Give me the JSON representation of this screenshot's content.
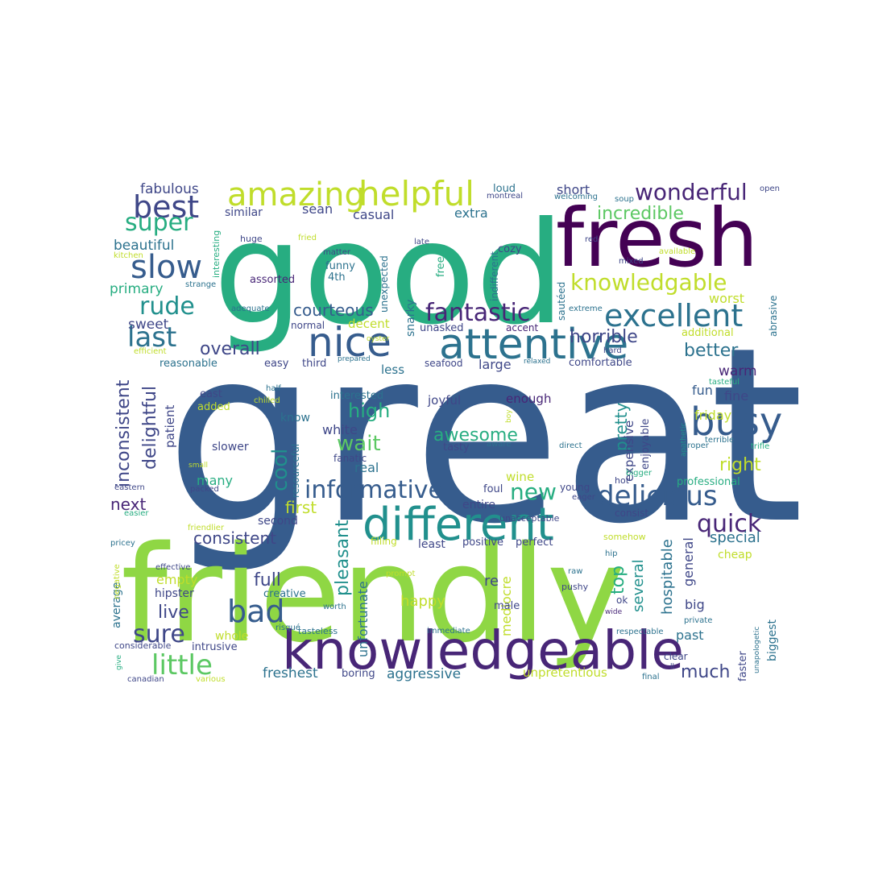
{
  "palette": {
    "dark_purple": "#440154",
    "purple": "#482677",
    "indigo": "#3f4788",
    "blue": "#365c8d",
    "steel": "#2c728e",
    "teal": "#21908d",
    "green_teal": "#27ad81",
    "green": "#5cc863",
    "lime": "#8fd744",
    "yellow_green": "#c0dd2b",
    "yellow": "#fde725"
  },
  "words": [
    {
      "text": "great",
      "color": "blue"
    },
    {
      "text": "good",
      "color": "green_teal"
    },
    {
      "text": "friendly",
      "color": "lime"
    },
    {
      "text": "fresh",
      "color": "dark_purple"
    },
    {
      "text": "knowledgeable",
      "color": "purple"
    },
    {
      "text": "different",
      "color": "teal"
    },
    {
      "text": "attentive",
      "color": "steel"
    },
    {
      "text": "nice",
      "color": "blue"
    },
    {
      "text": "helpful",
      "color": "yellow_green"
    },
    {
      "text": "amazing",
      "color": "yellow_green"
    },
    {
      "text": "busy",
      "color": "blue"
    },
    {
      "text": "excellent",
      "color": "steel"
    },
    {
      "text": "slow",
      "color": "blue"
    },
    {
      "text": "best",
      "color": "indigo"
    },
    {
      "text": "informative",
      "color": "blue"
    },
    {
      "text": "delicious",
      "color": "blue"
    },
    {
      "text": "knowledgable",
      "color": "yellow_green"
    },
    {
      "text": "wonderful",
      "color": "purple"
    },
    {
      "text": "super",
      "color": "green_teal"
    },
    {
      "text": "fantastic",
      "color": "purple"
    },
    {
      "text": "last",
      "color": "steel"
    },
    {
      "text": "rude",
      "color": "teal"
    },
    {
      "text": "bad",
      "color": "blue"
    },
    {
      "text": "little",
      "color": "green"
    },
    {
      "text": "sure",
      "color": "indigo"
    },
    {
      "text": "incredible",
      "color": "green"
    },
    {
      "text": "quick",
      "color": "purple"
    },
    {
      "text": "new",
      "color": "green_teal"
    },
    {
      "text": "courteous",
      "color": "blue"
    },
    {
      "text": "horrible",
      "color": "indigo"
    },
    {
      "text": "overall",
      "color": "indigo"
    },
    {
      "text": "better",
      "color": "steel"
    },
    {
      "text": "high",
      "color": "green_teal"
    },
    {
      "text": "wait",
      "color": "green"
    },
    {
      "text": "cool",
      "color": "teal"
    },
    {
      "text": "awesome",
      "color": "green_teal"
    },
    {
      "text": "consistent",
      "color": "indigo"
    },
    {
      "text": "inconsistent",
      "color": "indigo"
    },
    {
      "text": "delightful",
      "color": "indigo"
    },
    {
      "text": "pleasant",
      "color": "teal"
    },
    {
      "text": "first",
      "color": "yellow_green"
    },
    {
      "text": "next",
      "color": "purple"
    },
    {
      "text": "right",
      "color": "yellow_green"
    },
    {
      "text": "pretty",
      "color": "teal"
    },
    {
      "text": "full",
      "color": "indigo"
    },
    {
      "text": "live",
      "color": "indigo"
    },
    {
      "text": "much",
      "color": "indigo"
    },
    {
      "text": "top",
      "color": "green_teal"
    },
    {
      "text": "fabulous",
      "color": "indigo"
    },
    {
      "text": "beautiful",
      "color": "steel"
    },
    {
      "text": "primary",
      "color": "green_teal"
    },
    {
      "text": "sweet",
      "color": "indigo"
    },
    {
      "text": "warm",
      "color": "purple"
    },
    {
      "text": "worst",
      "color": "yellow_green"
    },
    {
      "text": "fine",
      "color": "indigo"
    },
    {
      "text": "fun",
      "color": "blue"
    },
    {
      "text": "friday",
      "color": "yellow_green"
    },
    {
      "text": "special",
      "color": "steel"
    },
    {
      "text": "hospitable",
      "color": "steel"
    },
    {
      "text": "general",
      "color": "indigo"
    },
    {
      "text": "several",
      "color": "teal"
    },
    {
      "text": "happy",
      "color": "yellow_green"
    },
    {
      "text": "re",
      "color": "indigo"
    },
    {
      "text": "mediocre",
      "color": "yellow_green"
    },
    {
      "text": "unfortunate",
      "color": "steel"
    },
    {
      "text": "aggressive",
      "color": "steel"
    },
    {
      "text": "freshest",
      "color": "steel"
    },
    {
      "text": "unpretentious",
      "color": "yellow_green"
    },
    {
      "text": "past",
      "color": "steel"
    },
    {
      "text": "big",
      "color": "indigo"
    },
    {
      "text": "biggest",
      "color": "steel"
    },
    {
      "text": "empty",
      "color": "yellow_green"
    },
    {
      "text": "average",
      "color": "steel"
    },
    {
      "text": "hipster",
      "color": "indigo"
    },
    {
      "text": "whole",
      "color": "yellow_green"
    },
    {
      "text": "expensive",
      "color": "indigo"
    },
    {
      "text": "enjoyable",
      "color": "indigo"
    },
    {
      "text": "professional",
      "color": "green_teal"
    },
    {
      "text": "cheap",
      "color": "yellow_green"
    },
    {
      "text": "many",
      "color": "green_teal"
    },
    {
      "text": "real",
      "color": "steel"
    },
    {
      "text": "white",
      "color": "indigo"
    },
    {
      "text": "slower",
      "color": "indigo"
    },
    {
      "text": "enough",
      "color": "purple"
    },
    {
      "text": "second",
      "color": "indigo"
    },
    {
      "text": "least",
      "color": "indigo"
    },
    {
      "text": "positive",
      "color": "indigo"
    },
    {
      "text": "perfect",
      "color": "indigo"
    },
    {
      "text": "entire",
      "color": "indigo"
    },
    {
      "text": "wine",
      "color": "yellow_green"
    },
    {
      "text": "short",
      "color": "indigo"
    },
    {
      "text": "extra",
      "color": "steel"
    },
    {
      "text": "casual",
      "color": "indigo"
    },
    {
      "text": "sean",
      "color": "indigo"
    },
    {
      "text": "similar",
      "color": "indigo"
    },
    {
      "text": "loud",
      "color": "steel"
    },
    {
      "text": "decent",
      "color": "yellow_green"
    },
    {
      "text": "snarky",
      "color": "steel"
    },
    {
      "text": "less",
      "color": "steel"
    },
    {
      "text": "large",
      "color": "indigo"
    },
    {
      "text": "patient",
      "color": "indigo"
    },
    {
      "text": "added",
      "color": "yellow_green"
    },
    {
      "text": "east",
      "color": "indigo"
    },
    {
      "text": "reasonable",
      "color": "steel"
    },
    {
      "text": "easy",
      "color": "indigo"
    },
    {
      "text": "third",
      "color": "indigo"
    },
    {
      "text": "seafood",
      "color": "indigo"
    },
    {
      "text": "comfortable",
      "color": "indigo"
    },
    {
      "text": "interested",
      "color": "steel"
    },
    {
      "text": "joyful",
      "color": "indigo"
    },
    {
      "text": "tasty",
      "color": "indigo"
    },
    {
      "text": "know",
      "color": "steel"
    },
    {
      "text": "fanatic",
      "color": "indigo"
    },
    {
      "text": "resourceful",
      "color": "steel"
    },
    {
      "text": "normal",
      "color": "indigo"
    },
    {
      "text": "assorted",
      "color": "purple"
    },
    {
      "text": "4th",
      "color": "steel"
    },
    {
      "text": "funny",
      "color": "steel"
    },
    {
      "text": "unasked",
      "color": "indigo"
    },
    {
      "text": "accent",
      "color": "purple"
    },
    {
      "text": "additional",
      "color": "yellow_green"
    },
    {
      "text": "abrasive",
      "color": "steel"
    },
    {
      "text": "cozy",
      "color": "indigo"
    },
    {
      "text": "free",
      "color": "green_teal"
    },
    {
      "text": "indifferent",
      "color": "steel"
    },
    {
      "text": "sautéed",
      "color": "steel"
    },
    {
      "text": "unexpected",
      "color": "steel"
    },
    {
      "text": "late",
      "color": "indigo"
    },
    {
      "text": "matter",
      "color": "indigo"
    },
    {
      "text": "huge",
      "color": "indigo"
    },
    {
      "text": "interesting",
      "color": "green_teal"
    },
    {
      "text": "fried",
      "color": "yellow_green"
    },
    {
      "text": "strange",
      "color": "steel"
    },
    {
      "text": "kitchen",
      "color": "yellow_green"
    },
    {
      "text": "adequate",
      "color": "steel"
    },
    {
      "text": "efficient",
      "color": "yellow_green"
    },
    {
      "text": "montreal",
      "color": "indigo"
    },
    {
      "text": "welcoming",
      "color": "steel"
    },
    {
      "text": "soup",
      "color": "steel"
    },
    {
      "text": "open",
      "color": "indigo"
    },
    {
      "text": "available",
      "color": "yellow_green"
    },
    {
      "text": "mixed",
      "color": "indigo"
    },
    {
      "text": "red",
      "color": "indigo"
    },
    {
      "text": "extreme",
      "color": "steel"
    },
    {
      "text": "prepared",
      "color": "steel"
    },
    {
      "text": "relaxed",
      "color": "steel"
    },
    {
      "text": "hard",
      "color": "indigo"
    },
    {
      "text": "tasteful",
      "color": "green_teal"
    },
    {
      "text": "terrible",
      "color": "steel"
    },
    {
      "text": "apathetic",
      "color": "teal"
    },
    {
      "text": "trifle",
      "color": "green_teal"
    },
    {
      "text": "proper",
      "color": "steel"
    },
    {
      "text": "direct",
      "color": "steel"
    },
    {
      "text": "aware",
      "color": "steel"
    },
    {
      "text": "boy",
      "color": "yellow_green"
    },
    {
      "text": "bigger",
      "color": "green_teal"
    },
    {
      "text": "hot",
      "color": "indigo"
    },
    {
      "text": "eager",
      "color": "indigo"
    },
    {
      "text": "young",
      "color": "indigo"
    },
    {
      "text": "foul",
      "color": "indigo"
    },
    {
      "text": "unacceptable",
      "color": "indigo"
    },
    {
      "text": "consist",
      "color": "indigo"
    },
    {
      "text": "somehow",
      "color": "yellow_green"
    },
    {
      "text": "hip",
      "color": "steel"
    },
    {
      "text": "pushy",
      "color": "indigo"
    },
    {
      "text": "ok",
      "color": "indigo"
    },
    {
      "text": "raw",
      "color": "steel"
    },
    {
      "text": "wide",
      "color": "purple"
    },
    {
      "text": "private",
      "color": "steel"
    },
    {
      "text": "respectable",
      "color": "steel"
    },
    {
      "text": "unapologetic",
      "color": "steel"
    },
    {
      "text": "faster",
      "color": "indigo"
    },
    {
      "text": "final",
      "color": "steel"
    },
    {
      "text": "ll",
      "color": "indigo"
    },
    {
      "text": "clear",
      "color": "indigo"
    },
    {
      "text": "male",
      "color": "indigo"
    },
    {
      "text": "immediate",
      "color": "steel"
    },
    {
      "text": "tasteless",
      "color": "steel"
    },
    {
      "text": "worth",
      "color": "steel"
    },
    {
      "text": "prompt",
      "color": "yellow_green"
    },
    {
      "text": "filling",
      "color": "yellow_green"
    },
    {
      "text": "creative",
      "color": "steel"
    },
    {
      "text": "intrusive",
      "color": "indigo"
    },
    {
      "text": "boring",
      "color": "indigo"
    },
    {
      "text": "considerable",
      "color": "indigo"
    },
    {
      "text": "canadian",
      "color": "indigo"
    },
    {
      "text": "various",
      "color": "yellow_green"
    },
    {
      "text": "risqué",
      "color": "steel"
    },
    {
      "text": "negative",
      "color": "yellow_green"
    },
    {
      "text": "give",
      "color": "green_teal"
    },
    {
      "text": "effective",
      "color": "indigo"
    },
    {
      "text": "pricey",
      "color": "steel"
    },
    {
      "text": "friendlier",
      "color": "yellow_green"
    },
    {
      "text": "easier",
      "color": "green_teal"
    },
    {
      "text": "eastern",
      "color": "indigo"
    },
    {
      "text": "packed",
      "color": "indigo"
    },
    {
      "text": "small",
      "color": "yellow_green"
    },
    {
      "text": "half",
      "color": "steel"
    },
    {
      "text": "chilled",
      "color": "yellow_green"
    },
    {
      "text": "oyster",
      "color": "yellow_green"
    }
  ]
}
